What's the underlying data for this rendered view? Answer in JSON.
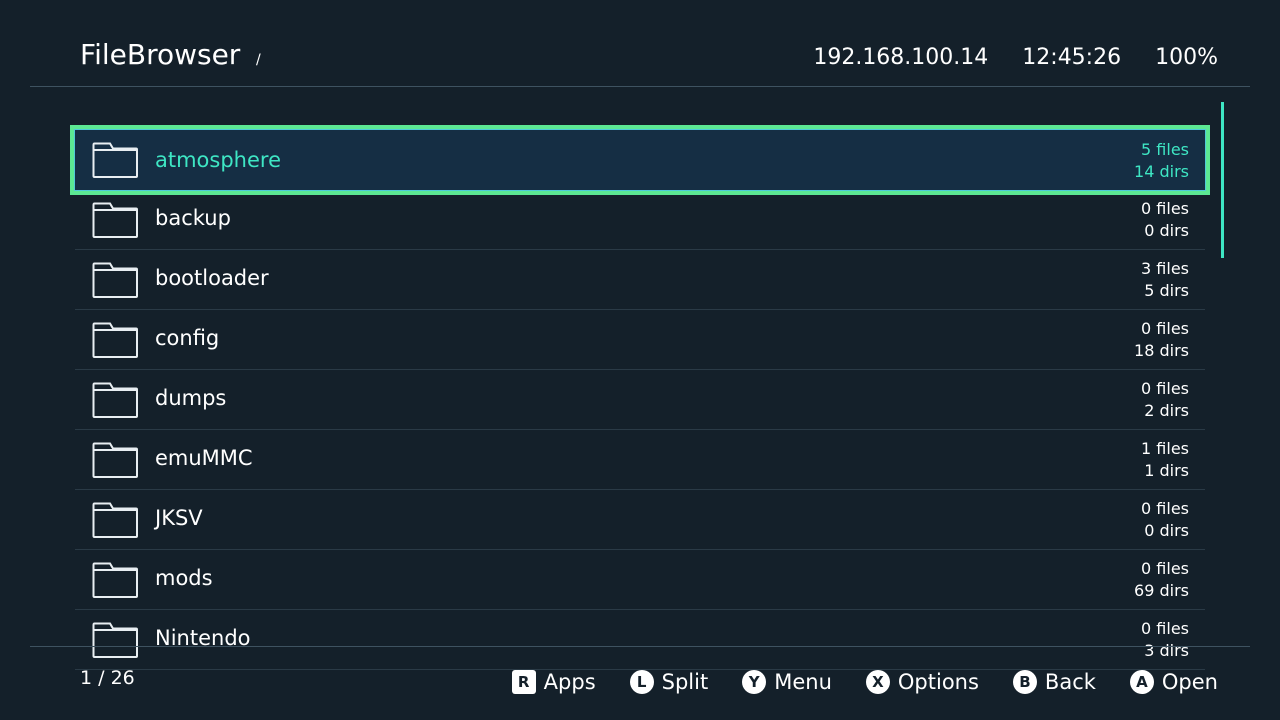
{
  "header": {
    "title": "FileBrowser",
    "path": "/",
    "ip": "192.168.100.14",
    "time": "12:45:26",
    "battery": "100%"
  },
  "list": {
    "selected_index": 0,
    "items": [
      {
        "name": "atmosphere",
        "files": "5 files",
        "dirs": "14 dirs"
      },
      {
        "name": "backup",
        "files": "0 files",
        "dirs": "0 dirs"
      },
      {
        "name": "bootloader",
        "files": "3 files",
        "dirs": "5 dirs"
      },
      {
        "name": "config",
        "files": "0 files",
        "dirs": "18 dirs"
      },
      {
        "name": "dumps",
        "files": "0 files",
        "dirs": "2 dirs"
      },
      {
        "name": "emuMMC",
        "files": "1 files",
        "dirs": "1 dirs"
      },
      {
        "name": "JKSV",
        "files": "0 files",
        "dirs": "0 dirs"
      },
      {
        "name": "mods",
        "files": "0 files",
        "dirs": "69 dirs"
      },
      {
        "name": "Nintendo",
        "files": "0 files",
        "dirs": "3 dirs"
      }
    ]
  },
  "footer": {
    "pager": "1 / 26",
    "hints": [
      {
        "key": "R",
        "label": "Apps"
      },
      {
        "key": "L",
        "label": "Split"
      },
      {
        "key": "Y",
        "label": "Menu"
      },
      {
        "key": "X",
        "label": "Options"
      },
      {
        "key": "B",
        "label": "Back"
      },
      {
        "key": "A",
        "label": "Open"
      }
    ]
  },
  "colors": {
    "background": "#14202a",
    "selected_bg": "#152e44",
    "selected_border": "#5ce893",
    "accent_text": "#3ee6c4"
  }
}
